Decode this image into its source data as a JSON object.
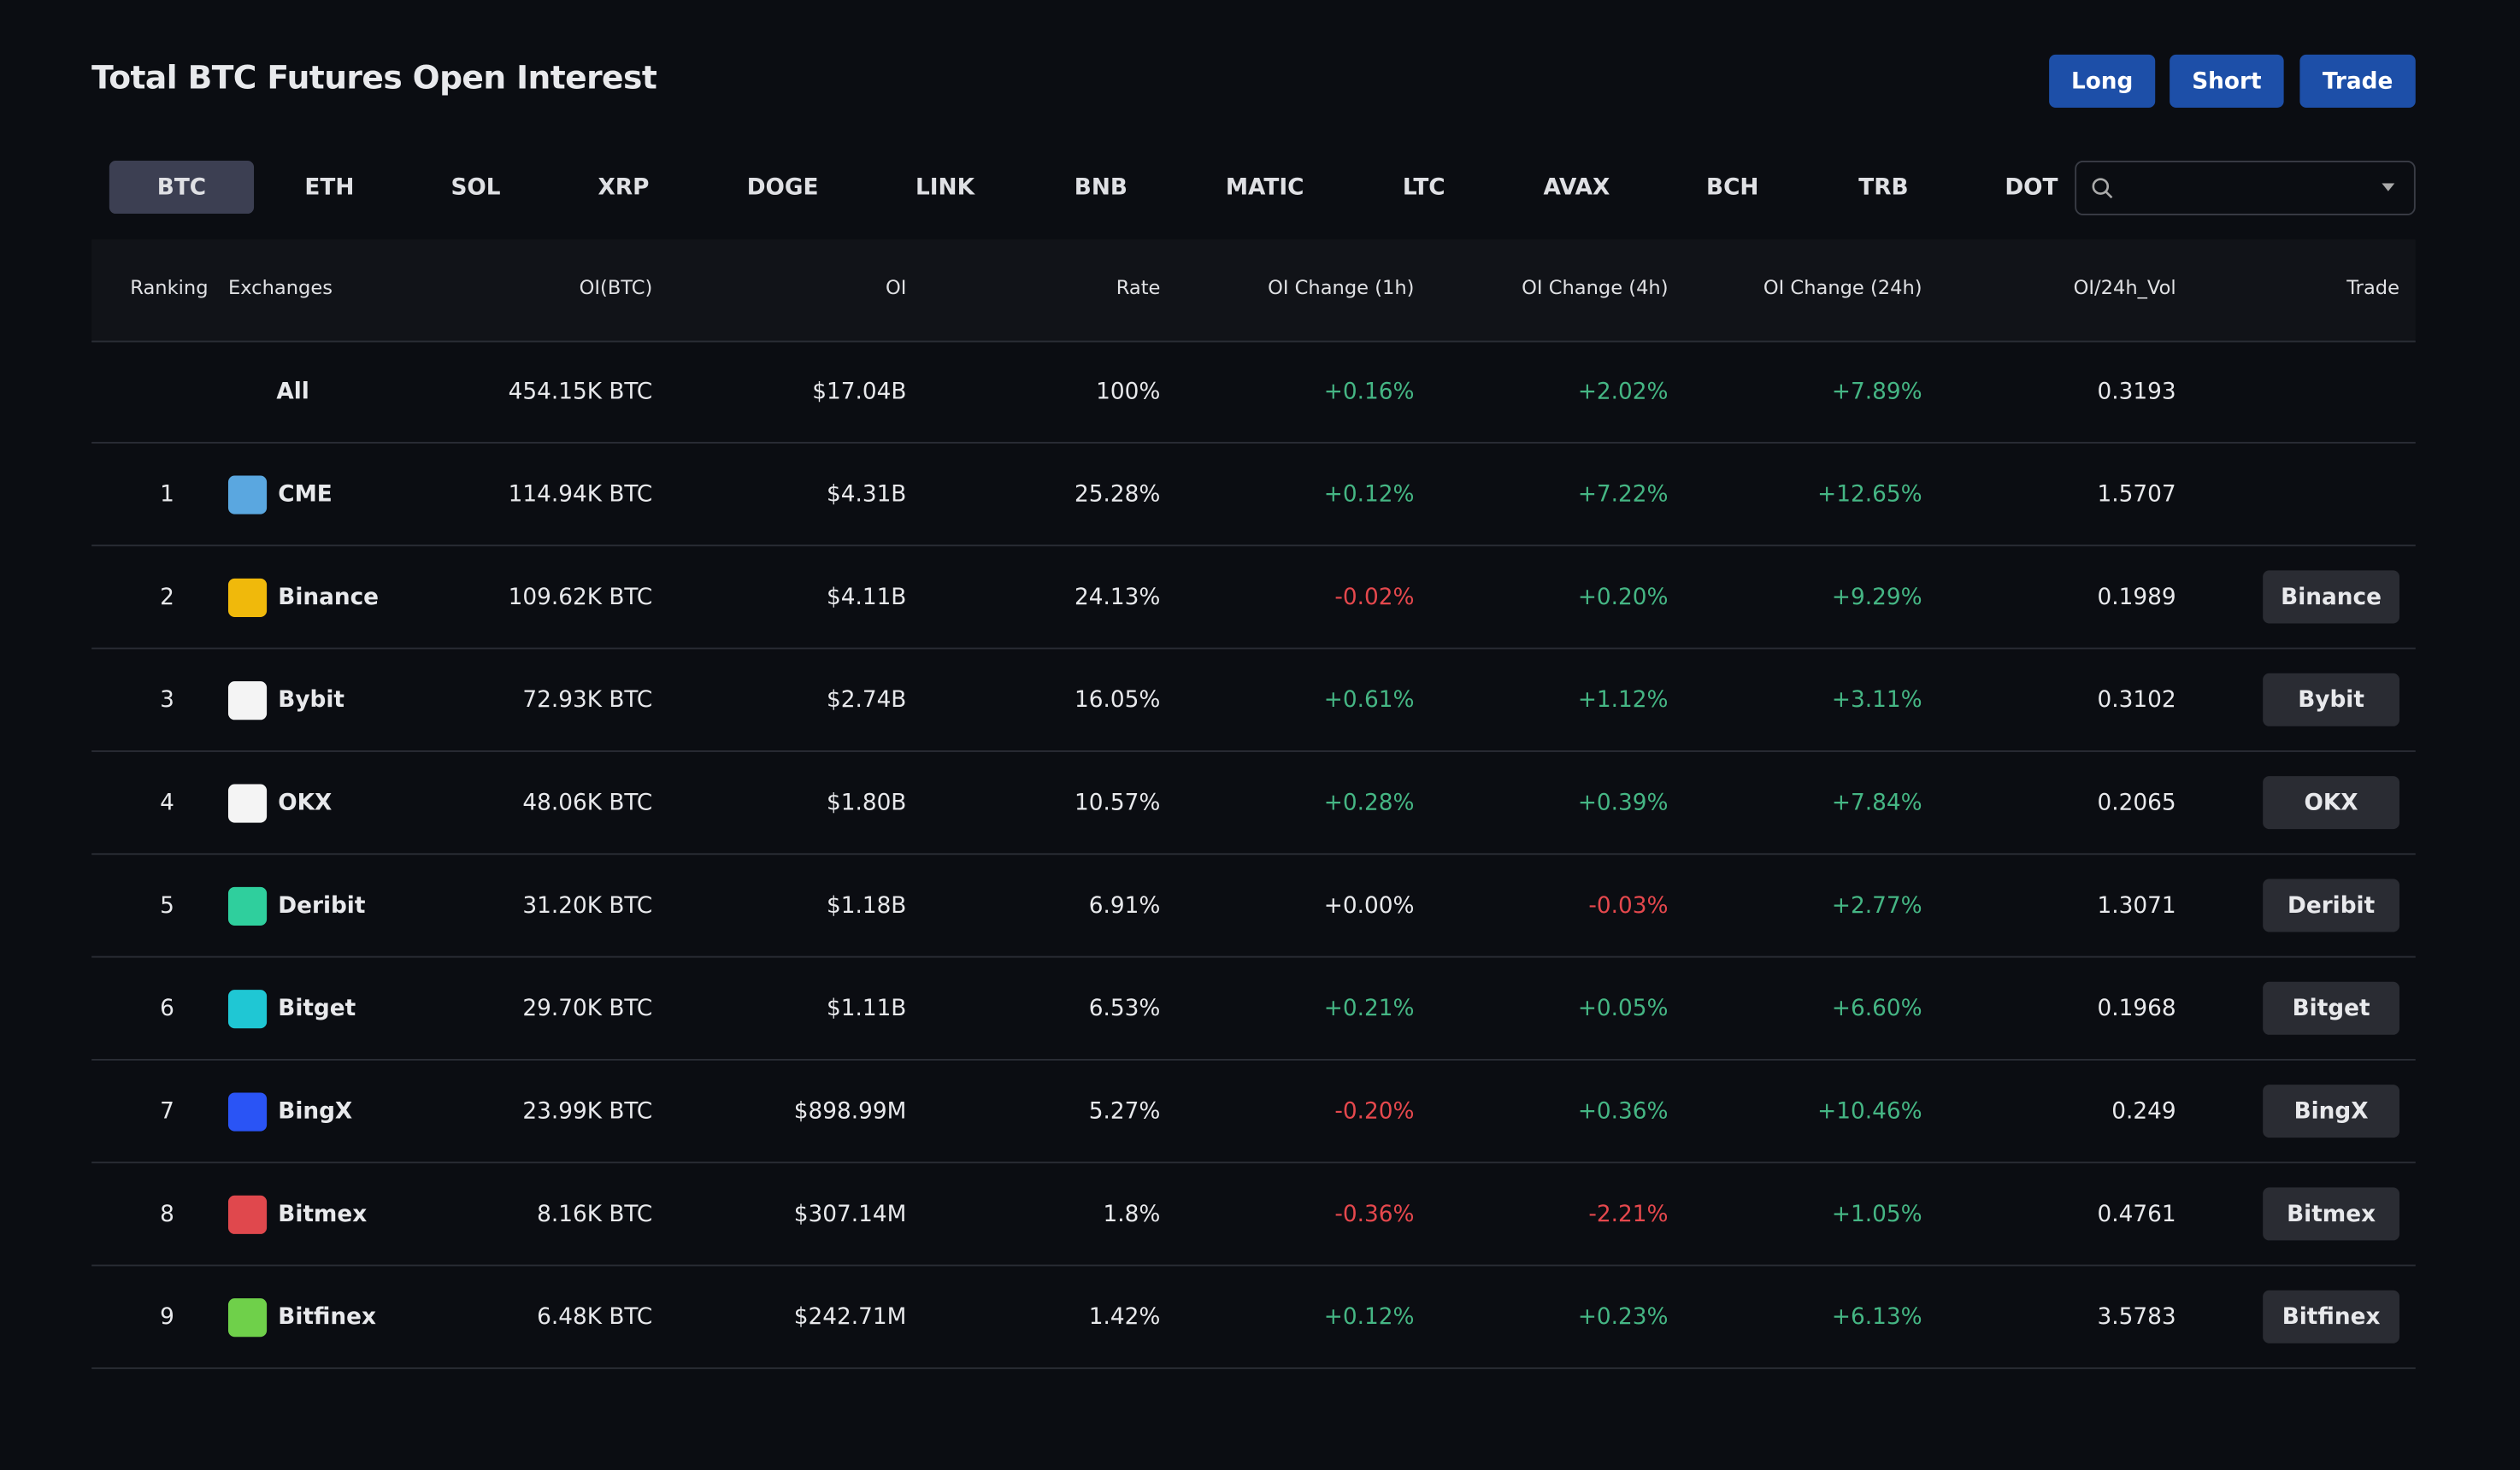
{
  "header": {
    "title": "Total BTC Futures Open Interest",
    "buttons": [
      "Long",
      "Short",
      "Trade"
    ]
  },
  "tabs": [
    "BTC",
    "ETH",
    "SOL",
    "XRP",
    "DOGE",
    "LINK",
    "BNB",
    "MATIC",
    "LTC",
    "AVAX",
    "BCH",
    "TRB",
    "DOT"
  ],
  "table": {
    "columns": [
      "Ranking",
      "Exchanges",
      "OI(BTC)",
      "OI",
      "Rate",
      "OI Change (1h)",
      "OI Change (4h)",
      "OI Change (24h)",
      "OI/24h_Vol",
      "Trade"
    ],
    "rows": [
      {
        "exchange": "All",
        "oi_btc": "454.15K BTC",
        "oi": "$17.04B",
        "rate": "100%",
        "ch1h": "+0.16%",
        "ch4h": "+2.02%",
        "ch24h": "+7.89%",
        "vol": "0.3193"
      },
      {
        "ranking": "1",
        "exchange": "CME",
        "oi_btc": "114.94K BTC",
        "oi": "$4.31B",
        "rate": "25.28%",
        "ch1h": "+0.12%",
        "ch4h": "+7.22%",
        "ch24h": "+12.65%",
        "vol": "1.5707"
      },
      {
        "ranking": "2",
        "exchange": "Binance",
        "oi_btc": "109.62K BTC",
        "oi": "$4.11B",
        "rate": "24.13%",
        "ch1h": "-0.02%",
        "ch4h": "+0.20%",
        "ch24h": "+9.29%",
        "vol": "0.1989",
        "trade": "Binance"
      },
      {
        "ranking": "3",
        "exchange": "Bybit",
        "oi_btc": "72.93K BTC",
        "oi": "$2.74B",
        "rate": "16.05%",
        "ch1h": "+0.61%",
        "ch4h": "+1.12%",
        "ch24h": "+3.11%",
        "vol": "0.3102",
        "trade": "Bybit"
      },
      {
        "ranking": "4",
        "exchange": "OKX",
        "oi_btc": "48.06K BTC",
        "oi": "$1.80B",
        "rate": "10.57%",
        "ch1h": "+0.28%",
        "ch4h": "+0.39%",
        "ch24h": "+7.84%",
        "vol": "0.2065",
        "trade": "OKX"
      },
      {
        "ranking": "5",
        "exchange": "Deribit",
        "oi_btc": "31.20K BTC",
        "oi": "$1.18B",
        "rate": "6.91%",
        "ch1h": "+0.00%",
        "ch4h": "-0.03%",
        "ch24h": "+2.77%",
        "vol": "1.3071",
        "trade": "Deribit"
      },
      {
        "ranking": "6",
        "exchange": "Bitget",
        "oi_btc": "29.70K BTC",
        "oi": "$1.11B",
        "rate": "6.53%",
        "ch1h": "+0.21%",
        "ch4h": "+0.05%",
        "ch24h": "+6.60%",
        "vol": "0.1968",
        "trade": "Bitget"
      },
      {
        "ranking": "7",
        "exchange": "BingX",
        "oi_btc": "23.99K BTC",
        "oi": "$898.99M",
        "rate": "5.27%",
        "ch1h": "-0.20%",
        "ch4h": "+0.36%",
        "ch24h": "+10.46%",
        "vol": "0.249",
        "trade": "BingX"
      },
      {
        "ranking": "8",
        "exchange": "Bitmex",
        "oi_btc": "8.16K BTC",
        "oi": "$307.14M",
        "rate": "1.8%",
        "ch1h": "-0.36%",
        "ch4h": "-2.21%",
        "ch24h": "+1.05%",
        "vol": "0.4761",
        "trade": "Bitmex"
      },
      {
        "ranking": "9",
        "exchange": "Bitfinex",
        "oi_btc": "6.48K BTC",
        "oi": "$242.71M",
        "rate": "1.42%",
        "ch1h": "+0.12%",
        "ch4h": "+0.23%",
        "ch24h": "+6.13%",
        "vol": "3.5783",
        "trade": "Bitfinex"
      }
    ]
  }
}
